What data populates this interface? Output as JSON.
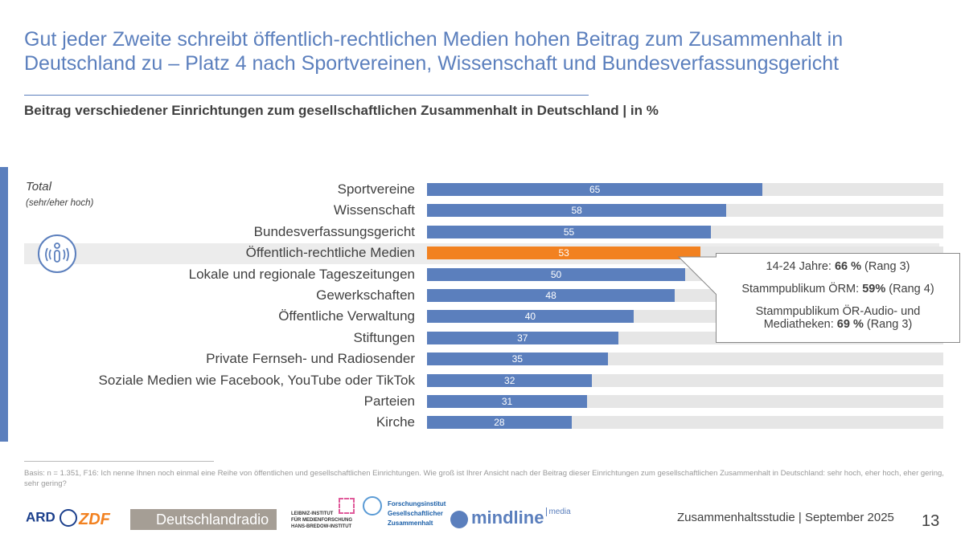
{
  "title": "Gut jeder Zweite schreibt öffentlich-rechtlichen Medien hohen Beitrag zum Zusammenhalt in Deutschland zu – Platz 4 nach Sportvereinen, Wissenschaft und Bundesverfassungsgericht",
  "subtitle": "Beitrag verschiedener Einrichtungen zum gesellschaftlichen Zusammenhalt in Deutschland | in %",
  "group_label": "Total",
  "group_sublabel": "(sehr/eher hoch)",
  "icon": "broadcast-info-icon",
  "colors": {
    "bar": "#5b7fbd",
    "highlight": "#f28120",
    "track": "#e6e6e6",
    "title": "#5b7fbd"
  },
  "chart_data": {
    "type": "bar",
    "orientation": "horizontal",
    "xlim": [
      0,
      100
    ],
    "categories": [
      "Sportvereine",
      "Wissenschaft",
      "Bundesverfassungsgericht",
      "Öffentlich-rechtliche Medien",
      "Lokale und regionale Tageszeitungen",
      "Gewerkschaften",
      "Öffentliche Verwaltung",
      "Stiftungen",
      "Private Fernseh- und Radiosender",
      "Soziale Medien wie Facebook, YouTube oder TikTok",
      "Parteien",
      "Kirche"
    ],
    "values": [
      65,
      58,
      55,
      53,
      50,
      48,
      40,
      37,
      35,
      32,
      31,
      28
    ],
    "highlighted": "Öffentlich-rechtliche Medien"
  },
  "callout": {
    "line1_pre": "14-24 Jahre: ",
    "line1_bold": "66 %",
    "line1_post": " (Rang 3)",
    "line2_pre": "Stammpublikum ÖRM: ",
    "line2_bold": "59%",
    "line2_post": " (Rang 4)",
    "line3": "Stammpublikum ÖR-Audio- und",
    "line4_pre": "Mediatheken: ",
    "line4_bold": "69 %",
    "line4_post": " (Rang 3)"
  },
  "basis": "Basis: n = 1.351, F16: Ich nenne Ihnen noch einmal eine Reihe von öffentlichen und gesellschaftlichen Einrichtungen. Wie groß ist Ihrer Ansicht nach der Beitrag dieser Einrichtungen zum gesellschaftlichen Zusammenhalt in Deutschland: sehr hoch, eher hoch, eher gering, sehr gering?",
  "logos": {
    "ard": "ARD",
    "zdf": "ZDF",
    "dradio": "Deutschlandradio",
    "leibniz": [
      "LEIBNIZ-INSTITUT",
      "FÜR MEDIENFORSCHUNG",
      "HANS-BREDOW-INSTITUT"
    ],
    "fgz": [
      "Forschungsinstitut",
      "Gesellschaftlicher",
      "Zusammenhalt"
    ],
    "mindline": "mindline",
    "mindline_media": "media"
  },
  "footer": "Zusammenhaltsstudie | September 2025",
  "page_number": "13"
}
